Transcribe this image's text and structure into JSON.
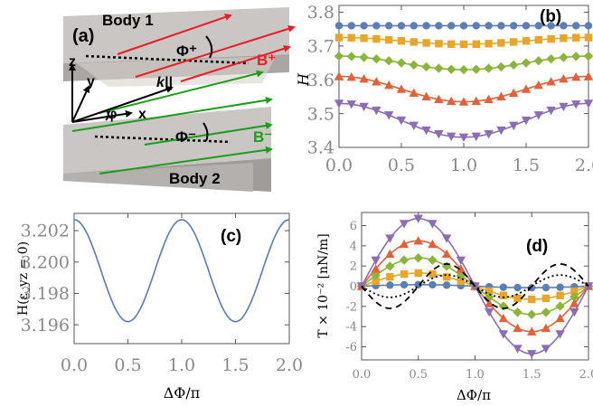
{
  "panel_a": {
    "label": "(a)",
    "body1": "Body 1",
    "body2": "Body 2",
    "phi_plus": "Φ⁺",
    "phi_minus": "Φ⁻",
    "b_plus": "B⁺",
    "b_minus": "B⁻",
    "k_par": "k||",
    "axis_z": "z",
    "axis_y": "y",
    "axis_x": "x",
    "phi": "φ",
    "colors": {
      "slab": "#b9b6b4",
      "slab_dark": "#8f8c8a",
      "red": "#ee1c24",
      "green": "#1a9e1a"
    }
  },
  "chart_data": [
    {
      "panel": "(b)",
      "type": "line",
      "xlabel": "",
      "ylabel": "H",
      "xlim": [
        0,
        2
      ],
      "ylim": [
        3.4,
        3.82
      ],
      "xticks": [
        "0.0",
        "0.5",
        "1.0",
        "1.5",
        "2.0"
      ],
      "yticks": [
        "3.4",
        "3.5",
        "3.6",
        "3.7",
        "3.8"
      ],
      "series": [
        {
          "color": "#5b7fb5",
          "marker": "circle",
          "top": 3.76,
          "min": 3.76
        },
        {
          "color": "#e8a52a",
          "marker": "square",
          "top": 3.725,
          "min": 3.705
        },
        {
          "color": "#8ab43a",
          "marker": "diamond",
          "top": 3.67,
          "min": 3.63
        },
        {
          "color": "#e0623a",
          "marker": "triangle-up",
          "top": 3.61,
          "min": 3.535
        },
        {
          "color": "#8b6db3",
          "marker": "triangle-down",
          "top": 3.53,
          "min": 3.43
        }
      ]
    },
    {
      "panel": "(c)",
      "type": "line",
      "xlabel": "ΔΦ/π",
      "ylabel": "H(ε_yz = 0)",
      "xlim": [
        0,
        2
      ],
      "ylim": [
        3.1948,
        3.2031
      ],
      "xticks": [
        "0.0",
        "0.5",
        "1.0",
        "1.5",
        "2.0"
      ],
      "yticks": [
        "3.196",
        "3.198",
        "3.200",
        "3.202"
      ],
      "series": [
        {
          "color": "#5a7bb0",
          "max": 3.2027,
          "min": 3.1962
        }
      ]
    },
    {
      "panel": "(d)",
      "type": "line",
      "xlabel": "ΔΦ/π",
      "ylabel": "T × 10⁻² [nN/m]",
      "xlim": [
        0,
        2
      ],
      "ylim": [
        -7.3,
        7.3
      ],
      "xticks": [
        "0.0",
        "0.5",
        "1.0",
        "1.5",
        "2.0"
      ],
      "yticks": [
        "-6",
        "-4",
        "-2",
        "0",
        "2",
        "4",
        "6"
      ],
      "series": [
        {
          "color": "#5b7fb5",
          "marker": "circle",
          "amp": 0.15
        },
        {
          "color": "#e8a52a",
          "marker": "square",
          "amp": 1.3
        },
        {
          "color": "#8ab43a",
          "marker": "diamond",
          "amp": 2.8
        },
        {
          "color": "#e0623a",
          "marker": "triangle-up",
          "amp": 4.5
        },
        {
          "color": "#8b6db3",
          "marker": "triangle-down",
          "amp": 6.7
        },
        {
          "color": "#000000",
          "style": "dashed",
          "amp": -2.2,
          "harmonic": 2
        },
        {
          "color": "#000000",
          "style": "dotted",
          "amp": -1.1,
          "harmonic": 2
        }
      ]
    }
  ],
  "panel_labels": {
    "b": "(b)",
    "c": "(c)",
    "d": "(d)"
  }
}
